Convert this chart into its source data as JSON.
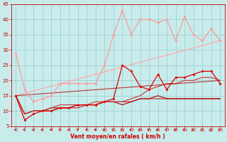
{
  "xlabel": "Vent moyen/en rafales ( km/h )",
  "xlim": [
    -0.5,
    23.5
  ],
  "ylim": [
    5,
    45
  ],
  "yticks": [
    5,
    10,
    15,
    20,
    25,
    30,
    35,
    40,
    45
  ],
  "xticks": [
    0,
    1,
    2,
    3,
    4,
    5,
    6,
    7,
    8,
    9,
    10,
    11,
    12,
    13,
    14,
    15,
    16,
    17,
    18,
    19,
    20,
    21,
    22,
    23
  ],
  "background_color": "#c8ecec",
  "grid_color": "#a0d0d0",
  "lines": [
    {
      "x": [
        0,
        1,
        2,
        3,
        4,
        5,
        6,
        7,
        8,
        9,
        10,
        11,
        12,
        13,
        14,
        15,
        16,
        17,
        18,
        19,
        20,
        21,
        22,
        23
      ],
      "y": [
        29,
        17,
        13,
        14,
        15,
        19,
        19,
        19,
        19,
        19,
        25,
        35,
        43,
        35,
        40,
        40,
        39,
        40,
        33,
        41,
        35,
        33,
        37,
        33
      ],
      "color": "#ff9999",
      "lw": 0.9,
      "marker": "D",
      "ms": 2.0
    },
    {
      "x": [
        0,
        1,
        2,
        3,
        4,
        5,
        6,
        7,
        8,
        9,
        10,
        11,
        12,
        13,
        14,
        15,
        16,
        17,
        18,
        19,
        20,
        21,
        22,
        23
      ],
      "y": [
        15,
        7,
        9,
        10,
        10,
        11,
        11,
        12,
        12,
        12,
        13,
        14,
        25,
        23,
        18,
        17,
        22,
        17,
        21,
        21,
        22,
        23,
        23,
        19
      ],
      "color": "#dd0000",
      "lw": 0.9,
      "marker": "D",
      "ms": 2.0
    },
    {
      "x": [
        0,
        1,
        2,
        3,
        4,
        5,
        6,
        7,
        8,
        9,
        10,
        11,
        12,
        13,
        14,
        15,
        16,
        17,
        18,
        19,
        20,
        21,
        22,
        23
      ],
      "y": [
        15,
        9,
        10,
        10,
        10,
        11,
        11,
        11,
        12,
        12,
        13,
        13,
        13,
        13,
        14,
        14,
        14,
        14,
        14,
        14,
        14,
        14,
        14,
        14
      ],
      "color": "#cc2222",
      "lw": 0.8,
      "marker": null,
      "ms": 0
    },
    {
      "x": [
        0,
        1,
        2,
        3,
        4,
        5,
        6,
        7,
        8,
        9,
        10,
        11,
        12,
        13,
        14,
        15,
        16,
        17,
        18,
        19,
        20,
        21,
        22,
        23
      ],
      "y": [
        15,
        9,
        10,
        10,
        11,
        11,
        11,
        12,
        12,
        12,
        13,
        13,
        12,
        13,
        14,
        14,
        15,
        14,
        14,
        14,
        14,
        14,
        14,
        14
      ],
      "color": "#aa0000",
      "lw": 0.8,
      "marker": null,
      "ms": 0
    },
    {
      "x": [
        0,
        1,
        2,
        3,
        4,
        5,
        6,
        7,
        8,
        9,
        10,
        11,
        12,
        13,
        14,
        15,
        16,
        17,
        18,
        19,
        20,
        21,
        22,
        23
      ],
      "y": [
        15,
        9,
        10,
        10,
        11,
        12,
        12,
        12,
        12,
        13,
        13,
        13,
        13,
        14,
        15,
        17,
        18,
        19,
        19,
        20,
        20,
        21,
        21,
        20
      ],
      "color": "#cc3333",
      "lw": 0.8,
      "marker": null,
      "ms": 0
    },
    {
      "x": [
        0,
        23
      ],
      "y": [
        15,
        33
      ],
      "color": "#ffaaaa",
      "lw": 0.9,
      "marker": null,
      "ms": 0
    },
    {
      "x": [
        0,
        23
      ],
      "y": [
        15,
        20
      ],
      "color": "#bb3333",
      "lw": 0.8,
      "marker": null,
      "ms": 0
    }
  ],
  "wind_arrows": [
    0,
    1,
    2,
    3,
    4,
    5,
    6,
    7,
    8,
    9,
    10,
    11,
    12,
    13,
    14,
    15,
    16,
    17,
    18,
    19,
    20,
    21,
    22,
    23
  ],
  "arrow_color": "#cc0000"
}
